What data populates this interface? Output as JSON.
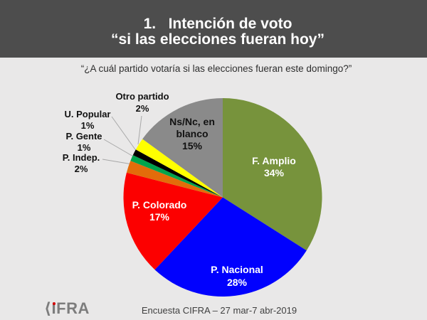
{
  "slide": {
    "title_line1": "1.   Intención de voto",
    "title_line2": "“si las elecciones fueran hoy”",
    "subtitle": "“¿A cuál partido votaría si las elecciones fueran este domingo?”",
    "footer": {
      "logo_text": "⟨IFRA",
      "logo_name": "CIFRA",
      "caption": "Encuesta CIFRA – 27 mar-7 abr-2019"
    }
  },
  "chart_data": {
    "type": "pie",
    "title": "Intención de voto “si las elecciones fueran hoy”",
    "question": "¿A cuál partido votaría si las elecciones fueran este domingo?",
    "start_angle_deg": 0,
    "direction": "clockwise",
    "units": "%",
    "slices": [
      {
        "label": "F. Amplio",
        "pct": "34%",
        "value": 34,
        "color": "#77933C"
      },
      {
        "label": "P. Nacional",
        "pct": "28%",
        "value": 28,
        "color": "#0101FE"
      },
      {
        "label": "P. Colorado",
        "pct": "17%",
        "value": 17,
        "color": "#FC0000"
      },
      {
        "label": "P. Indep.",
        "pct": "2%",
        "value": 2,
        "color": "#E36C0A"
      },
      {
        "label": "P. Gente",
        "pct": "1%",
        "value": 1,
        "color": "#00A44C"
      },
      {
        "label": "U. Popular",
        "pct": "1%",
        "value": 1,
        "color": "#000000"
      },
      {
        "label": "Otro partido",
        "pct": "2%",
        "value": 2,
        "color": "#FFFF00"
      },
      {
        "label": "Ns/Nc, en blanco",
        "pct": "15%",
        "value": 15,
        "color": "#8A8A8A"
      }
    ]
  }
}
